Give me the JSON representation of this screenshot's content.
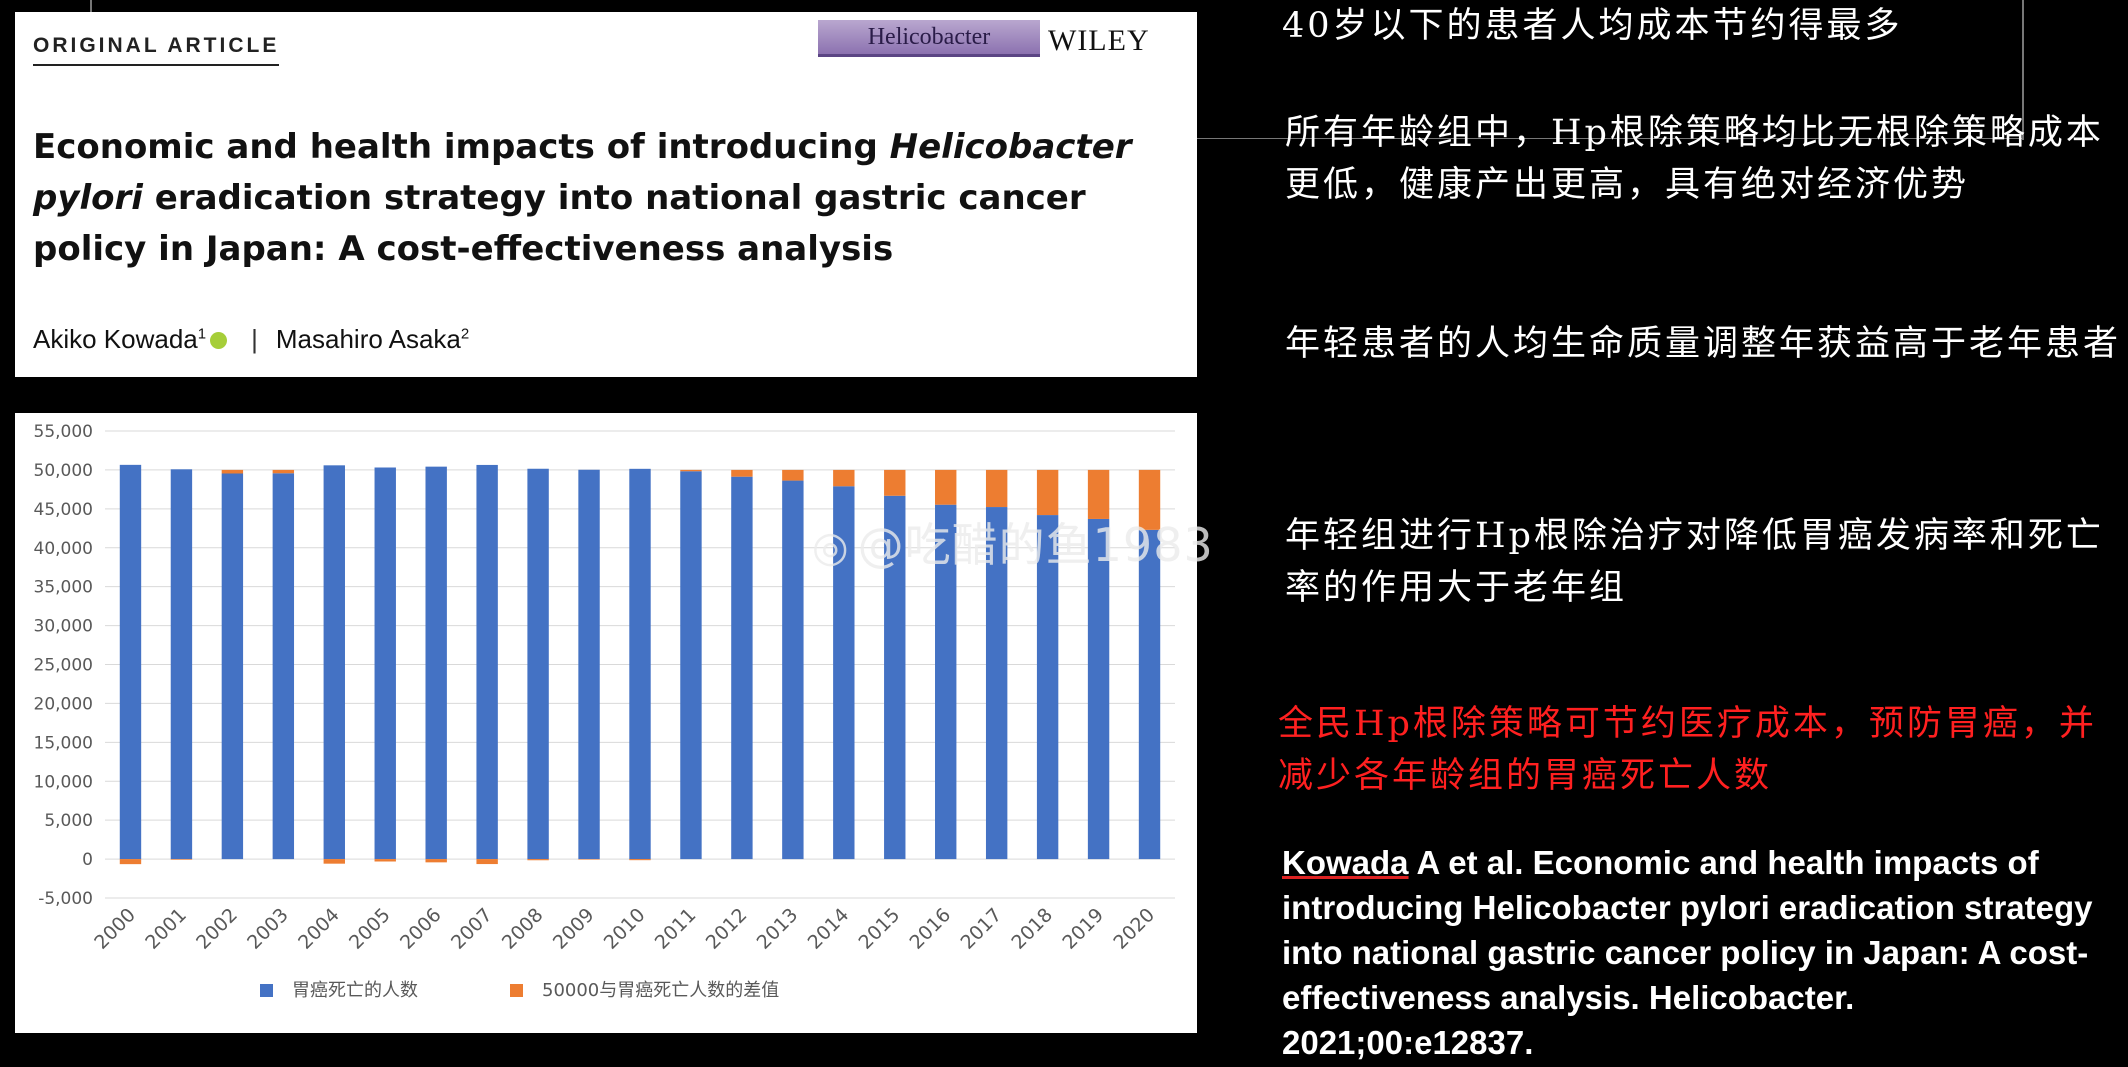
{
  "article": {
    "label": "ORIGINAL ARTICLE",
    "journal": "Helicobacter",
    "publisher": "WILEY",
    "title_part1": "Economic and health impacts of introducing ",
    "title_italic": "Helicobacter pylori",
    "title_part2": " eradication strategy into national gastric cancer policy in Japan: A cost-effectiveness analysis",
    "author1": "Akiko Kowada",
    "author1_sup": "1",
    "separator": "|",
    "author2": "Masahiro Asaka",
    "author2_sup": "2"
  },
  "notes": {
    "note1": "40岁以下的患者人均成本节约得最多",
    "note2": "所有年龄组中，Hp根除策略均比无根除策略成本更低，健康产出更高，具有绝对经济优势",
    "note3": "年轻患者的人均生命质量调整年获益高于老年患者",
    "note4": "年轻组进行Hp根除治疗对降低胃癌发病率和死亡率的作用大于老年组",
    "highlight": "全民Hp根除策略可节约医疗成本，预防胃癌，并减少各年龄组的胃癌死亡人数"
  },
  "citation": {
    "author": "Kowada",
    "text": " A et al. Economic and health impacts of introducing Helicobacter pylori eradication strategy into national gastric cancer policy in Japan: A cost-effectiveness analysis. Helicobacter. 2021;00:e12837."
  },
  "watermark": "@吃醋的鱼1983",
  "colors": {
    "series1": "#4472c4",
    "series2": "#ed7d31",
    "highlight": "#ff2020"
  },
  "chart_data": {
    "type": "bar",
    "stacked": true,
    "categories": [
      "2000",
      "2001",
      "2002",
      "2003",
      "2004",
      "2005",
      "2006",
      "2007",
      "2008",
      "2009",
      "2010",
      "2011",
      "2012",
      "2013",
      "2014",
      "2015",
      "2016",
      "2017",
      "2018",
      "2019",
      "2020"
    ],
    "series": [
      {
        "name": "胃癌死亡的人数",
        "values": [
          50650,
          50080,
          49540,
          49570,
          50590,
          50310,
          50420,
          50640,
          50150,
          50020,
          50140,
          49830,
          49130,
          48630,
          47900,
          46680,
          45530,
          45230,
          44200,
          43700,
          42300
        ]
      },
      {
        "name": "50000与胃癌死亡人数的差值",
        "values": [
          -650,
          -80,
          460,
          430,
          -590,
          -310,
          -420,
          -640,
          -150,
          -20,
          -140,
          170,
          870,
          1370,
          2100,
          3320,
          4470,
          4770,
          5800,
          6300,
          7700
        ]
      }
    ],
    "ylim": [
      -5000,
      55000
    ],
    "ytick_step": 5000,
    "ytick_labels": [
      "-5,000",
      "0",
      "5,000",
      "10,000",
      "15,000",
      "20,000",
      "25,000",
      "30,000",
      "35,000",
      "40,000",
      "45,000",
      "50,000",
      "55,000"
    ],
    "grid": true,
    "legend_position": "bottom"
  }
}
